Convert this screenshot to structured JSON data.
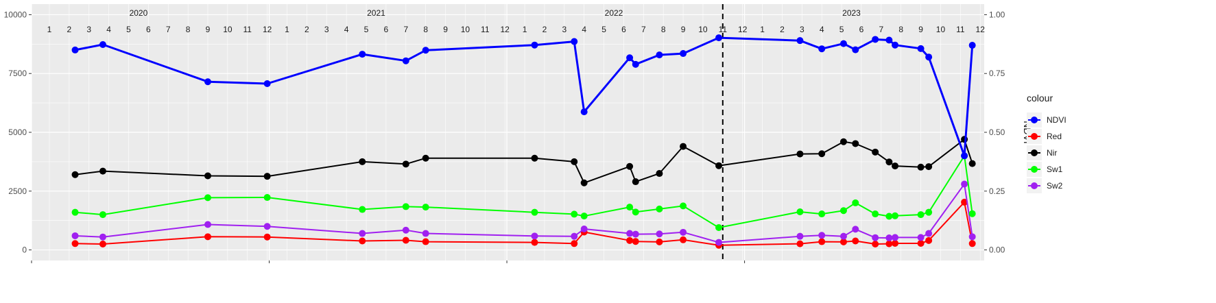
{
  "chart_data": {
    "type": "line",
    "title": "",
    "xlabel": "",
    "ylabel": "",
    "y2label": "NDVI",
    "ylim": [
      0,
      10000
    ],
    "y2lim": [
      0,
      1
    ],
    "y_ticks": [
      "0",
      "2500",
      "5000",
      "7500",
      "10000"
    ],
    "y2_ticks": [
      "0.00",
      "0.25",
      "0.50",
      "0.75",
      "1.00"
    ],
    "y_tick_values": [
      0,
      2500,
      5000,
      7500,
      10000
    ],
    "y2_tick_values": [
      0,
      0.25,
      0.5,
      0.75,
      1.0
    ],
    "xlim": [
      0.1,
      48.2
    ],
    "grid": true,
    "legend_position": "right",
    "legend_title": "colour",
    "vline": {
      "x": 35.0,
      "style": "dashed",
      "color": "#000000"
    },
    "years": [
      {
        "label": "2020",
        "x": 5.5
      },
      {
        "label": "2021",
        "x": 17.5
      },
      {
        "label": "2022",
        "x": 29.5
      },
      {
        "label": "2023",
        "x": 41.5
      }
    ],
    "months": [
      {
        "label": "1",
        "x": 1
      },
      {
        "label": "2",
        "x": 2
      },
      {
        "label": "3",
        "x": 3
      },
      {
        "label": "4",
        "x": 4
      },
      {
        "label": "5",
        "x": 5
      },
      {
        "label": "6",
        "x": 6
      },
      {
        "label": "7",
        "x": 7
      },
      {
        "label": "8",
        "x": 8
      },
      {
        "label": "9",
        "x": 9
      },
      {
        "label": "10",
        "x": 10
      },
      {
        "label": "11",
        "x": 11
      },
      {
        "label": "12",
        "x": 12
      },
      {
        "label": "1",
        "x": 13
      },
      {
        "label": "2",
        "x": 14
      },
      {
        "label": "3",
        "x": 15
      },
      {
        "label": "4",
        "x": 16
      },
      {
        "label": "5",
        "x": 17
      },
      {
        "label": "6",
        "x": 18
      },
      {
        "label": "7",
        "x": 19
      },
      {
        "label": "8",
        "x": 20
      },
      {
        "label": "9",
        "x": 21
      },
      {
        "label": "10",
        "x": 22
      },
      {
        "label": "11",
        "x": 23
      },
      {
        "label": "12",
        "x": 24
      },
      {
        "label": "1",
        "x": 25
      },
      {
        "label": "2",
        "x": 26
      },
      {
        "label": "3",
        "x": 27
      },
      {
        "label": "4",
        "x": 28
      },
      {
        "label": "5",
        "x": 29
      },
      {
        "label": "6",
        "x": 30
      },
      {
        "label": "7",
        "x": 31
      },
      {
        "label": "8",
        "x": 32
      },
      {
        "label": "9",
        "x": 33
      },
      {
        "label": "10",
        "x": 34
      },
      {
        "label": "11",
        "x": 35
      },
      {
        "label": "12",
        "x": 36
      },
      {
        "label": "1",
        "x": 37
      },
      {
        "label": "2",
        "x": 38
      },
      {
        "label": "3",
        "x": 39
      },
      {
        "label": "4",
        "x": 40
      },
      {
        "label": "5",
        "x": 41
      },
      {
        "label": "6",
        "x": 42
      },
      {
        "label": "7",
        "x": 43
      },
      {
        "label": "8",
        "x": 44
      },
      {
        "label": "9",
        "x": 45
      },
      {
        "label": "10",
        "x": 46
      },
      {
        "label": "11",
        "x": 47
      },
      {
        "label": "12",
        "x": 48
      }
    ],
    "x_major_ticks": [
      0.1,
      12.1,
      24.1,
      36.1
    ],
    "series": [
      {
        "name": "NDVI",
        "color": "#0000ff",
        "axis": "right",
        "x": [
          2.3,
          3.7,
          9.0,
          12.0,
          16.8,
          19.0,
          20.0,
          25.5,
          27.5,
          28.0,
          30.3,
          30.6,
          31.8,
          33.0,
          34.8,
          38.9,
          40.0,
          41.1,
          41.7,
          42.7,
          43.4,
          43.7,
          45.0,
          45.4,
          47.2,
          47.6
        ],
        "values": [
          0.85,
          0.873,
          0.715,
          0.707,
          0.832,
          0.804,
          0.849,
          0.871,
          0.886,
          0.587,
          0.817,
          0.789,
          0.829,
          0.835,
          0.902,
          0.89,
          0.855,
          0.877,
          0.851,
          0.895,
          0.892,
          0.871,
          0.856,
          0.82,
          0.4,
          0.87
        ]
      },
      {
        "name": "Red",
        "color": "#ff0000",
        "axis": "left",
        "x": [
          2.3,
          3.7,
          9.0,
          12.0,
          16.8,
          19.0,
          20.0,
          25.5,
          27.5,
          28.0,
          30.3,
          30.6,
          31.8,
          33.0,
          34.8,
          38.9,
          40.0,
          41.1,
          41.7,
          42.7,
          43.4,
          43.7,
          45.0,
          45.4,
          47.2,
          47.6
        ],
        "values": [
          270,
          250,
          560,
          550,
          380,
          410,
          350,
          320,
          270,
          760,
          400,
          360,
          340,
          430,
          200,
          260,
          350,
          340,
          380,
          250,
          260,
          280,
          280,
          400,
          2030,
          270
        ]
      },
      {
        "name": "Nir",
        "color": "#000000",
        "axis": "left",
        "x": [
          2.3,
          3.7,
          9.0,
          12.0,
          16.8,
          19.0,
          20.0,
          25.5,
          27.5,
          28.0,
          30.3,
          30.6,
          31.8,
          33.0,
          34.8,
          38.9,
          40.0,
          41.1,
          41.7,
          42.7,
          43.4,
          43.7,
          45.0,
          45.4,
          47.2,
          47.6
        ],
        "values": [
          3200,
          3350,
          3150,
          3130,
          3750,
          3650,
          3900,
          3900,
          3750,
          2850,
          3550,
          2900,
          3250,
          4400,
          3580,
          4080,
          4090,
          4600,
          4520,
          4160,
          3740,
          3570,
          3520,
          3540,
          4700,
          3670
        ]
      },
      {
        "name": "Sw1",
        "color": "#00ff00",
        "axis": "left",
        "x": [
          2.3,
          3.7,
          9.0,
          12.0,
          16.8,
          19.0,
          20.0,
          25.5,
          27.5,
          28.0,
          30.3,
          30.6,
          31.8,
          33.0,
          34.8,
          38.9,
          40.0,
          41.1,
          41.7,
          42.7,
          43.4,
          43.7,
          45.0,
          45.4,
          47.2,
          47.6
        ],
        "values": [
          1600,
          1500,
          2220,
          2230,
          1720,
          1840,
          1820,
          1600,
          1520,
          1440,
          1820,
          1610,
          1740,
          1870,
          950,
          1620,
          1530,
          1670,
          2000,
          1530,
          1430,
          1450,
          1500,
          1600,
          4000,
          1540
        ]
      },
      {
        "name": "Sw2",
        "color": "#a020f0",
        "axis": "left",
        "x": [
          2.3,
          3.7,
          9.0,
          12.0,
          16.8,
          19.0,
          20.0,
          25.5,
          27.5,
          28.0,
          30.3,
          30.6,
          31.8,
          33.0,
          34.8,
          38.9,
          40.0,
          41.1,
          41.7,
          42.7,
          43.4,
          43.7,
          45.0,
          45.4,
          47.2,
          47.6
        ],
        "values": [
          600,
          550,
          1080,
          1000,
          700,
          840,
          700,
          590,
          580,
          890,
          700,
          670,
          680,
          750,
          320,
          580,
          620,
          580,
          880,
          520,
          510,
          530,
          530,
          700,
          2800,
          560
        ]
      }
    ]
  }
}
